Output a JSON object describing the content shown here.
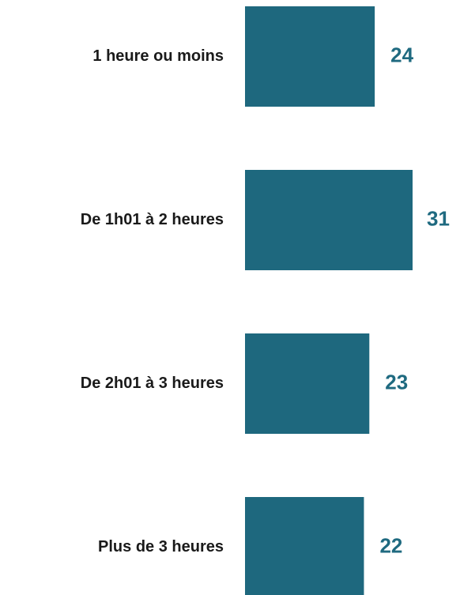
{
  "chart_data": {
    "type": "barh",
    "categories": [
      "1 heure ou moins",
      "De 1h01 à 2 heures",
      "De 2h01 à 3 heures",
      "Plus de 3 heures"
    ],
    "values": [
      24,
      31,
      23,
      22
    ],
    "color": "#1e687e"
  }
}
